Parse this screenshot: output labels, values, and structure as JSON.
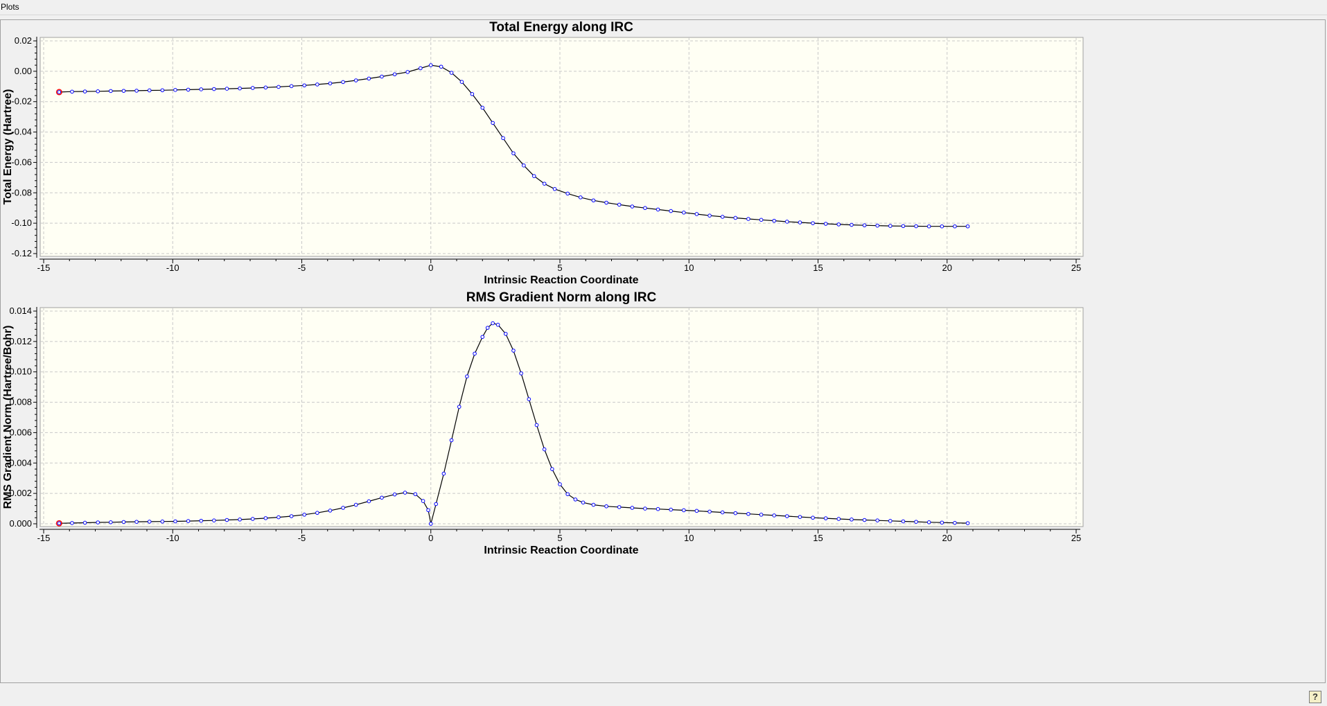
{
  "window": {
    "title": "Plots"
  },
  "chart_data": [
    {
      "type": "line",
      "title": "Total Energy along IRC",
      "xlabel": "Intrinsic Reaction Coordinate",
      "ylabel": "Total Energy (Hartree)",
      "xlim": [
        -15,
        25
      ],
      "ylim": [
        -0.12,
        0.02
      ],
      "xticks": [
        -15,
        -10,
        -5,
        0,
        5,
        10,
        15,
        20,
        25
      ],
      "yticks": [
        -0.12,
        -0.1,
        -0.08,
        -0.06,
        -0.04,
        -0.02,
        0.0,
        0.02
      ],
      "xtick_labels": [
        "-15",
        "-10",
        "-5",
        "0",
        "5",
        "10",
        "15",
        "20",
        "25"
      ],
      "ytick_labels": [
        "-0.12",
        "-0.10",
        "-0.08",
        "-0.06",
        "-0.04",
        "-0.02",
        "0.00",
        "0.02"
      ],
      "grid": true,
      "line_color": "#000000",
      "marker_color": "#0000ff",
      "highlight_color": "#ff0000",
      "highlight_point": {
        "x": -14.4,
        "y": -0.0137
      },
      "points": [
        [
          -14.4,
          -0.0137
        ],
        [
          -13.9,
          -0.0134
        ],
        [
          -13.4,
          -0.0133
        ],
        [
          -12.9,
          -0.0132
        ],
        [
          -12.4,
          -0.013
        ],
        [
          -11.9,
          -0.0129
        ],
        [
          -11.4,
          -0.0128
        ],
        [
          -10.9,
          -0.0126
        ],
        [
          -10.4,
          -0.0125
        ],
        [
          -9.9,
          -0.0123
        ],
        [
          -9.4,
          -0.0121
        ],
        [
          -8.9,
          -0.0119
        ],
        [
          -8.4,
          -0.0117
        ],
        [
          -7.9,
          -0.0115
        ],
        [
          -7.4,
          -0.0113
        ],
        [
          -6.9,
          -0.011
        ],
        [
          -6.4,
          -0.0107
        ],
        [
          -5.9,
          -0.0103
        ],
        [
          -5.4,
          -0.0098
        ],
        [
          -4.9,
          -0.0093
        ],
        [
          -4.4,
          -0.0087
        ],
        [
          -3.9,
          -0.008
        ],
        [
          -3.4,
          -0.0071
        ],
        [
          -2.9,
          -0.006
        ],
        [
          -2.4,
          -0.0048
        ],
        [
          -1.9,
          -0.0035
        ],
        [
          -1.4,
          -0.002
        ],
        [
          -0.9,
          -0.0005
        ],
        [
          -0.4,
          0.002
        ],
        [
          0.0,
          0.004
        ],
        [
          0.4,
          0.003
        ],
        [
          0.8,
          -0.001
        ],
        [
          1.2,
          -0.007
        ],
        [
          1.6,
          -0.015
        ],
        [
          2.0,
          -0.024
        ],
        [
          2.4,
          -0.034
        ],
        [
          2.8,
          -0.044
        ],
        [
          3.2,
          -0.054
        ],
        [
          3.6,
          -0.062
        ],
        [
          4.0,
          -0.069
        ],
        [
          4.4,
          -0.074
        ],
        [
          4.8,
          -0.0775
        ],
        [
          5.3,
          -0.0805
        ],
        [
          5.8,
          -0.083
        ],
        [
          6.3,
          -0.085
        ],
        [
          6.8,
          -0.0865
        ],
        [
          7.3,
          -0.0878
        ],
        [
          7.8,
          -0.089
        ],
        [
          8.3,
          -0.09
        ],
        [
          8.8,
          -0.091
        ],
        [
          9.3,
          -0.092
        ],
        [
          9.8,
          -0.093
        ],
        [
          10.3,
          -0.094
        ],
        [
          10.8,
          -0.095
        ],
        [
          11.3,
          -0.0958
        ],
        [
          11.8,
          -0.0965
        ],
        [
          12.3,
          -0.0972
        ],
        [
          12.8,
          -0.0978
        ],
        [
          13.3,
          -0.0984
        ],
        [
          13.8,
          -0.099
        ],
        [
          14.3,
          -0.0995
        ],
        [
          14.8,
          -0.1
        ],
        [
          15.3,
          -0.1004
        ],
        [
          15.8,
          -0.1008
        ],
        [
          16.3,
          -0.1011
        ],
        [
          16.8,
          -0.1014
        ],
        [
          17.3,
          -0.1016
        ],
        [
          17.8,
          -0.1018
        ],
        [
          18.3,
          -0.1019
        ],
        [
          18.8,
          -0.102
        ],
        [
          19.3,
          -0.1021
        ],
        [
          19.8,
          -0.1021
        ],
        [
          20.3,
          -0.1021
        ],
        [
          20.8,
          -0.1021
        ]
      ]
    },
    {
      "type": "line",
      "title": "RMS Gradient Norm along IRC",
      "xlabel": "Intrinsic Reaction Coordinate",
      "ylabel": "RMS Gradient Norm (Hartree/Bohr)",
      "xlim": [
        -15,
        25
      ],
      "ylim": [
        0,
        0.014
      ],
      "xticks": [
        -15,
        -10,
        -5,
        0,
        5,
        10,
        15,
        20,
        25
      ],
      "yticks": [
        0,
        0.002,
        0.004,
        0.006,
        0.008,
        0.01,
        0.012,
        0.014
      ],
      "xtick_labels": [
        "-15",
        "-10",
        "-5",
        "0",
        "5",
        "10",
        "15",
        "20",
        "25"
      ],
      "ytick_labels": [
        "0.000",
        "0.002",
        "0.004",
        "0.006",
        "0.008",
        "0.010",
        "0.012",
        "0.014"
      ],
      "grid": true,
      "line_color": "#000000",
      "marker_color": "#0000ff",
      "highlight_color": "#ff0000",
      "highlight_point": {
        "x": -14.4,
        "y": 3e-05
      },
      "points": [
        [
          -14.4,
          3e-05
        ],
        [
          -13.9,
          5e-05
        ],
        [
          -13.4,
          7e-05
        ],
        [
          -12.9,
          9e-05
        ],
        [
          -12.4,
          0.0001
        ],
        [
          -11.9,
          0.00012
        ],
        [
          -11.4,
          0.00013
        ],
        [
          -10.9,
          0.00014
        ],
        [
          -10.4,
          0.00015
        ],
        [
          -9.9,
          0.00016
        ],
        [
          -9.4,
          0.00018
        ],
        [
          -8.9,
          0.0002
        ],
        [
          -8.4,
          0.00022
        ],
        [
          -7.9,
          0.00025
        ],
        [
          -7.4,
          0.00028
        ],
        [
          -6.9,
          0.00032
        ],
        [
          -6.4,
          0.00037
        ],
        [
          -5.9,
          0.00043
        ],
        [
          -5.4,
          0.0005
        ],
        [
          -4.9,
          0.0006
        ],
        [
          -4.4,
          0.00072
        ],
        [
          -3.9,
          0.00087
        ],
        [
          -3.4,
          0.00105
        ],
        [
          -2.9,
          0.00125
        ],
        [
          -2.4,
          0.00148
        ],
        [
          -1.9,
          0.00172
        ],
        [
          -1.4,
          0.00193
        ],
        [
          -1.0,
          0.00205
        ],
        [
          -0.6,
          0.00195
        ],
        [
          -0.3,
          0.0015
        ],
        [
          -0.1,
          0.0009
        ],
        [
          0.0,
          0.0
        ],
        [
          0.2,
          0.0013
        ],
        [
          0.5,
          0.0033
        ],
        [
          0.8,
          0.0055
        ],
        [
          1.1,
          0.0077
        ],
        [
          1.4,
          0.0097
        ],
        [
          1.7,
          0.0112
        ],
        [
          2.0,
          0.0123
        ],
        [
          2.2,
          0.0129
        ],
        [
          2.4,
          0.0132
        ],
        [
          2.6,
          0.0131
        ],
        [
          2.9,
          0.0125
        ],
        [
          3.2,
          0.0114
        ],
        [
          3.5,
          0.0099
        ],
        [
          3.8,
          0.0082
        ],
        [
          4.1,
          0.0065
        ],
        [
          4.4,
          0.0049
        ],
        [
          4.7,
          0.0036
        ],
        [
          5.0,
          0.0026
        ],
        [
          5.3,
          0.00195
        ],
        [
          5.6,
          0.0016
        ],
        [
          5.9,
          0.0014
        ],
        [
          6.3,
          0.00125
        ],
        [
          6.8,
          0.00115
        ],
        [
          7.3,
          0.0011
        ],
        [
          7.8,
          0.00105
        ],
        [
          8.3,
          0.001
        ],
        [
          8.8,
          0.00097
        ],
        [
          9.3,
          0.00093
        ],
        [
          9.8,
          0.00089
        ],
        [
          10.3,
          0.00085
        ],
        [
          10.8,
          0.0008
        ],
        [
          11.3,
          0.00075
        ],
        [
          11.8,
          0.0007
        ],
        [
          12.3,
          0.00065
        ],
        [
          12.8,
          0.0006
        ],
        [
          13.3,
          0.00055
        ],
        [
          13.8,
          0.0005
        ],
        [
          14.3,
          0.00045
        ],
        [
          14.8,
          0.0004
        ],
        [
          15.3,
          0.00036
        ],
        [
          15.8,
          0.00032
        ],
        [
          16.3,
          0.00028
        ],
        [
          16.8,
          0.00025
        ],
        [
          17.3,
          0.00022
        ],
        [
          17.8,
          0.00019
        ],
        [
          18.3,
          0.00016
        ],
        [
          18.8,
          0.00013
        ],
        [
          19.3,
          0.0001
        ],
        [
          19.8,
          8e-05
        ],
        [
          20.3,
          6e-05
        ],
        [
          20.8,
          4e-05
        ]
      ]
    }
  ],
  "colors": {
    "plot_background": "#fffff4",
    "window_background": "#f0f0f0",
    "grid": "#c8c8c8"
  }
}
